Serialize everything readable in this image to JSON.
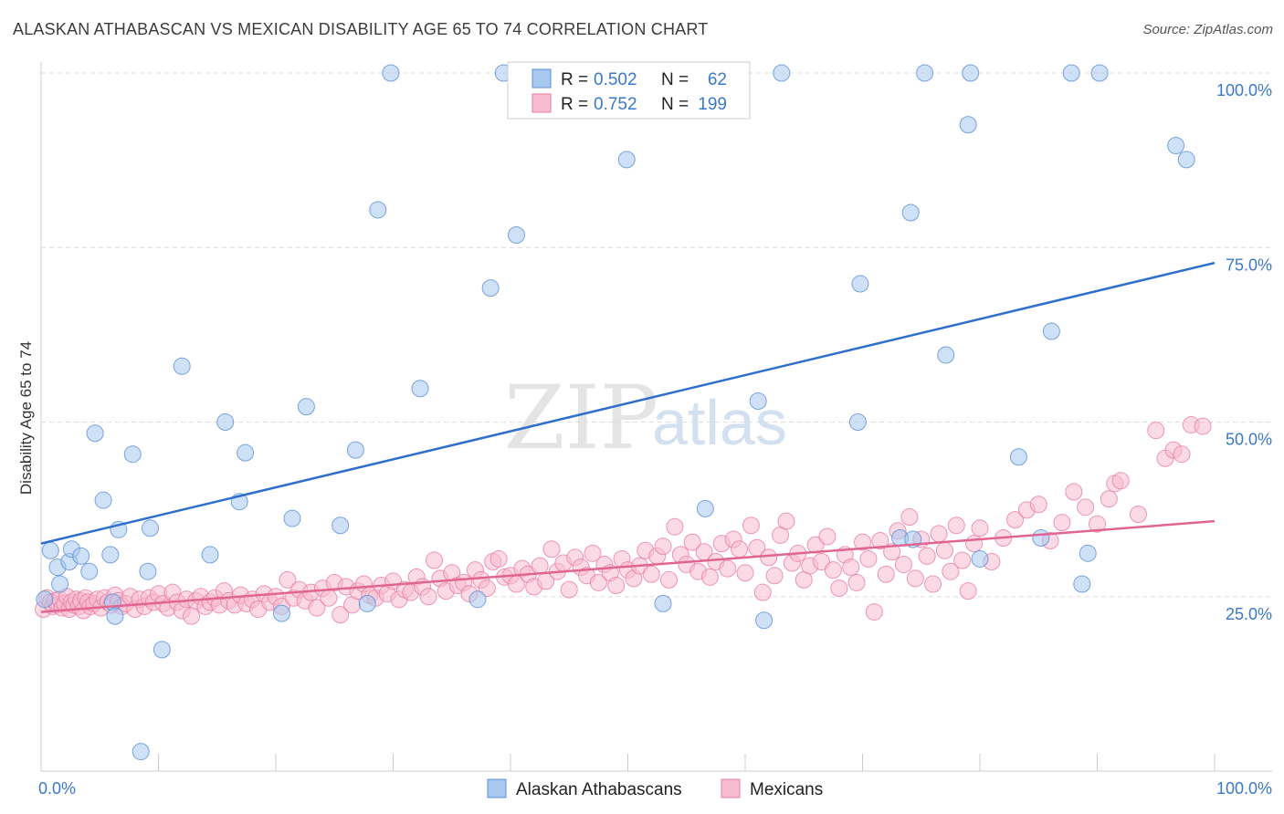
{
  "title": "ALASKAN ATHABASCAN VS MEXICAN DISABILITY AGE 65 TO 74 CORRELATION CHART",
  "source": "Source: ZipAtlas.com",
  "watermark": {
    "zip": "ZIP",
    "atlas": "atlas"
  },
  "legend": {
    "rows": [
      {
        "r_label": "R =",
        "r_value": "0.502",
        "n_label": "N =",
        "n_value": "62",
        "color": "#a8c8f0",
        "stroke": "#5b8fd6"
      },
      {
        "r_label": "R =",
        "r_value": "0.752",
        "n_label": "N =",
        "n_value": "199",
        "color": "#f8bcd0",
        "stroke": "#e87ea0"
      }
    ]
  },
  "chart_data": {
    "type": "scatter",
    "xlabel": "",
    "ylabel": "Disability Age 65 to 74",
    "xlim": [
      0,
      100
    ],
    "ylim": [
      0,
      100
    ],
    "x_tick_labels": [
      "0.0%",
      "100.0%"
    ],
    "y_tick_labels": [
      "25.0%",
      "50.0%",
      "75.0%",
      "100.0%"
    ],
    "y_ticks": [
      25,
      50,
      75,
      100
    ],
    "grid": "horizontal dashed",
    "legend_position": "top-center",
    "series": [
      {
        "name": "Alaskan Athabascans",
        "color": "#a8c8f0",
        "stroke": "#5b8fd6",
        "trend": {
          "x": [
            0,
            100
          ],
          "y": [
            32.6,
            72.8
          ],
          "color": "#2f6fcc"
        },
        "points": [
          [
            0.3,
            24.6
          ],
          [
            0.8,
            31.6
          ],
          [
            1.4,
            29.2
          ],
          [
            1.6,
            26.8
          ],
          [
            2.4,
            30.0
          ],
          [
            2.6,
            31.8
          ],
          [
            3.4,
            30.8
          ],
          [
            4.1,
            28.6
          ],
          [
            4.6,
            48.4
          ],
          [
            5.3,
            38.8
          ],
          [
            5.9,
            31.0
          ],
          [
            6.1,
            24.2
          ],
          [
            6.3,
            22.2
          ],
          [
            6.6,
            34.6
          ],
          [
            7.8,
            45.4
          ],
          [
            8.5,
            2.8
          ],
          [
            9.1,
            28.6
          ],
          [
            9.3,
            34.8
          ],
          [
            10.3,
            17.4
          ],
          [
            12.0,
            58.0
          ],
          [
            14.4,
            31.0
          ],
          [
            15.7,
            50.0
          ],
          [
            16.9,
            38.6
          ],
          [
            17.4,
            45.6
          ],
          [
            20.5,
            22.6
          ],
          [
            21.4,
            36.2
          ],
          [
            22.6,
            52.2
          ],
          [
            25.5,
            35.2
          ],
          [
            26.8,
            46.0
          ],
          [
            27.8,
            24.0
          ],
          [
            28.7,
            80.4
          ],
          [
            29.8,
            100.0
          ],
          [
            32.3,
            54.8
          ],
          [
            37.2,
            24.6
          ],
          [
            38.3,
            69.2
          ],
          [
            39.4,
            100.0
          ],
          [
            40.5,
            76.8
          ],
          [
            49.9,
            87.6
          ],
          [
            53.0,
            24.0
          ],
          [
            56.6,
            37.6
          ],
          [
            61.1,
            53.0
          ],
          [
            61.6,
            21.6
          ],
          [
            63.1,
            100.0
          ],
          [
            69.6,
            50.0
          ],
          [
            69.8,
            69.8
          ],
          [
            73.2,
            33.4
          ],
          [
            74.1,
            80.0
          ],
          [
            74.3,
            33.2
          ],
          [
            75.3,
            100.0
          ],
          [
            77.1,
            59.6
          ],
          [
            79.0,
            92.6
          ],
          [
            79.2,
            100.0
          ],
          [
            83.3,
            45.0
          ],
          [
            85.2,
            33.4
          ],
          [
            86.1,
            63.0
          ],
          [
            87.8,
            100.0
          ],
          [
            88.7,
            26.8
          ],
          [
            89.2,
            31.2
          ],
          [
            90.2,
            100.0
          ],
          [
            96.7,
            89.6
          ],
          [
            97.6,
            87.6
          ],
          [
            80.0,
            30.4
          ]
        ]
      },
      {
        "name": "Mexicans",
        "color": "#f8bcd0",
        "stroke": "#e87ea0",
        "trend": {
          "x": [
            0,
            100
          ],
          "y": [
            22.8,
            35.8
          ],
          "color": "#e06592"
        },
        "points": [
          [
            0.2,
            23.2
          ],
          [
            0.5,
            24.8
          ],
          [
            0.8,
            24.2
          ],
          [
            1.0,
            23.6
          ],
          [
            1.2,
            24.4
          ],
          [
            1.4,
            23.8
          ],
          [
            1.6,
            24.6
          ],
          [
            1.8,
            23.4
          ],
          [
            2.0,
            24.0
          ],
          [
            2.2,
            25.0
          ],
          [
            2.4,
            23.2
          ],
          [
            2.6,
            24.2
          ],
          [
            2.8,
            23.8
          ],
          [
            3.0,
            24.6
          ],
          [
            3.2,
            23.6
          ],
          [
            3.4,
            24.4
          ],
          [
            3.6,
            23.0
          ],
          [
            3.8,
            24.8
          ],
          [
            4.0,
            24.2
          ],
          [
            4.2,
            23.6
          ],
          [
            4.5,
            24.0
          ],
          [
            4.8,
            24.6
          ],
          [
            5.1,
            23.4
          ],
          [
            5.4,
            24.8
          ],
          [
            5.7,
            24.2
          ],
          [
            6.0,
            23.8
          ],
          [
            6.3,
            25.2
          ],
          [
            6.6,
            24.4
          ],
          [
            6.9,
            23.6
          ],
          [
            7.2,
            24.0
          ],
          [
            7.6,
            25.0
          ],
          [
            8.0,
            23.2
          ],
          [
            8.4,
            24.6
          ],
          [
            8.8,
            23.6
          ],
          [
            9.2,
            24.8
          ],
          [
            9.6,
            24.2
          ],
          [
            10.0,
            25.4
          ],
          [
            10.4,
            24.0
          ],
          [
            10.8,
            23.4
          ],
          [
            11.2,
            25.6
          ],
          [
            11.6,
            24.2
          ],
          [
            12.0,
            23.0
          ],
          [
            12.4,
            24.6
          ],
          [
            12.8,
            22.2
          ],
          [
            13.2,
            24.4
          ],
          [
            13.6,
            25.0
          ],
          [
            14.0,
            23.6
          ],
          [
            14.4,
            24.2
          ],
          [
            14.8,
            24.8
          ],
          [
            15.2,
            23.8
          ],
          [
            15.6,
            25.8
          ],
          [
            16.0,
            24.4
          ],
          [
            16.5,
            23.8
          ],
          [
            17.0,
            25.2
          ],
          [
            17.5,
            24.0
          ],
          [
            18.0,
            24.6
          ],
          [
            18.5,
            23.2
          ],
          [
            19.0,
            25.4
          ],
          [
            19.5,
            24.2
          ],
          [
            20.0,
            25.0
          ],
          [
            20.5,
            23.6
          ],
          [
            21.0,
            27.4
          ],
          [
            21.5,
            24.8
          ],
          [
            22.0,
            26.0
          ],
          [
            22.5,
            24.4
          ],
          [
            23.0,
            25.6
          ],
          [
            23.5,
            23.4
          ],
          [
            24.0,
            26.2
          ],
          [
            24.5,
            24.8
          ],
          [
            25.0,
            27.0
          ],
          [
            25.5,
            22.4
          ],
          [
            26.0,
            26.4
          ],
          [
            26.5,
            23.8
          ],
          [
            27.0,
            25.8
          ],
          [
            27.5,
            26.8
          ],
          [
            28.0,
            25.2
          ],
          [
            28.5,
            24.8
          ],
          [
            29.0,
            26.6
          ],
          [
            29.5,
            25.4
          ],
          [
            30.0,
            27.2
          ],
          [
            30.5,
            24.6
          ],
          [
            31.0,
            26.0
          ],
          [
            31.5,
            25.6
          ],
          [
            32.0,
            27.8
          ],
          [
            32.5,
            26.4
          ],
          [
            33.0,
            25.0
          ],
          [
            33.5,
            30.2
          ],
          [
            34.0,
            27.6
          ],
          [
            34.5,
            25.8
          ],
          [
            35.0,
            28.4
          ],
          [
            35.5,
            26.6
          ],
          [
            36.0,
            27.0
          ],
          [
            36.5,
            25.4
          ],
          [
            37.0,
            28.8
          ],
          [
            37.5,
            27.4
          ],
          [
            38.0,
            26.2
          ],
          [
            38.5,
            30.0
          ],
          [
            39.0,
            30.4
          ],
          [
            39.5,
            27.8
          ],
          [
            40.0,
            28.0
          ],
          [
            40.5,
            26.8
          ],
          [
            41.0,
            29.0
          ],
          [
            41.5,
            28.2
          ],
          [
            42.0,
            26.4
          ],
          [
            42.5,
            29.4
          ],
          [
            43.0,
            27.2
          ],
          [
            43.5,
            31.8
          ],
          [
            44.0,
            28.6
          ],
          [
            44.5,
            29.8
          ],
          [
            45.0,
            26.0
          ],
          [
            45.5,
            30.6
          ],
          [
            46.0,
            29.2
          ],
          [
            46.5,
            28.0
          ],
          [
            47.0,
            31.2
          ],
          [
            47.5,
            27.0
          ],
          [
            48.0,
            29.6
          ],
          [
            48.5,
            28.4
          ],
          [
            49.0,
            26.6
          ],
          [
            49.5,
            30.4
          ],
          [
            50.0,
            28.8
          ],
          [
            50.5,
            27.6
          ],
          [
            51.0,
            29.4
          ],
          [
            51.5,
            31.6
          ],
          [
            52.0,
            28.2
          ],
          [
            52.5,
            30.8
          ],
          [
            53.0,
            32.2
          ],
          [
            53.5,
            27.4
          ],
          [
            54.0,
            35.0
          ],
          [
            54.5,
            31.0
          ],
          [
            55.0,
            29.6
          ],
          [
            55.5,
            32.8
          ],
          [
            56.0,
            28.6
          ],
          [
            56.5,
            31.4
          ],
          [
            57.0,
            27.8
          ],
          [
            57.5,
            30.0
          ],
          [
            58.0,
            32.6
          ],
          [
            58.5,
            29.0
          ],
          [
            59.0,
            33.2
          ],
          [
            59.5,
            31.8
          ],
          [
            60.0,
            28.4
          ],
          [
            60.5,
            35.2
          ],
          [
            61.0,
            32.0
          ],
          [
            61.5,
            25.6
          ],
          [
            62.0,
            30.6
          ],
          [
            62.5,
            28.0
          ],
          [
            63.0,
            33.8
          ],
          [
            63.5,
            35.8
          ],
          [
            64.0,
            29.8
          ],
          [
            64.5,
            31.2
          ],
          [
            65.0,
            27.4
          ],
          [
            65.5,
            29.4
          ],
          [
            66.0,
            32.4
          ],
          [
            66.5,
            30.0
          ],
          [
            67.0,
            33.6
          ],
          [
            67.5,
            28.8
          ],
          [
            68.0,
            26.2
          ],
          [
            68.5,
            31.0
          ],
          [
            69.0,
            29.2
          ],
          [
            69.5,
            27.0
          ],
          [
            70.0,
            32.8
          ],
          [
            70.5,
            30.4
          ],
          [
            71.0,
            22.8
          ],
          [
            71.5,
            33.0
          ],
          [
            72.0,
            28.2
          ],
          [
            72.5,
            31.4
          ],
          [
            73.0,
            34.4
          ],
          [
            73.5,
            29.6
          ],
          [
            74.0,
            36.4
          ],
          [
            74.5,
            27.6
          ],
          [
            75.0,
            33.2
          ],
          [
            75.5,
            30.8
          ],
          [
            76.0,
            26.8
          ],
          [
            76.5,
            34.0
          ],
          [
            77.0,
            31.6
          ],
          [
            77.5,
            28.6
          ],
          [
            78.0,
            35.2
          ],
          [
            78.5,
            30.2
          ],
          [
            79.0,
            25.8
          ],
          [
            79.5,
            32.6
          ],
          [
            80.0,
            34.8
          ],
          [
            81.0,
            30.0
          ],
          [
            82.0,
            33.4
          ],
          [
            83.0,
            36.0
          ],
          [
            84.0,
            37.4
          ],
          [
            85.0,
            38.2
          ],
          [
            86.0,
            33.0
          ],
          [
            87.0,
            35.6
          ],
          [
            88.0,
            40.0
          ],
          [
            89.0,
            37.8
          ],
          [
            90.0,
            35.4
          ],
          [
            91.0,
            39.0
          ],
          [
            91.5,
            41.2
          ],
          [
            92.0,
            41.6
          ],
          [
            93.5,
            36.8
          ],
          [
            95.0,
            48.8
          ],
          [
            95.8,
            44.8
          ],
          [
            96.5,
            46.0
          ],
          [
            97.2,
            45.4
          ],
          [
            98.0,
            49.6
          ],
          [
            99.0,
            49.4
          ]
        ]
      }
    ]
  },
  "bottom_legend": [
    {
      "label": "Alaskan Athabascans",
      "color": "#a8c8f0",
      "stroke": "#5b8fd6"
    },
    {
      "label": "Mexicans",
      "color": "#f8bcd0",
      "stroke": "#e87ea0"
    }
  ]
}
